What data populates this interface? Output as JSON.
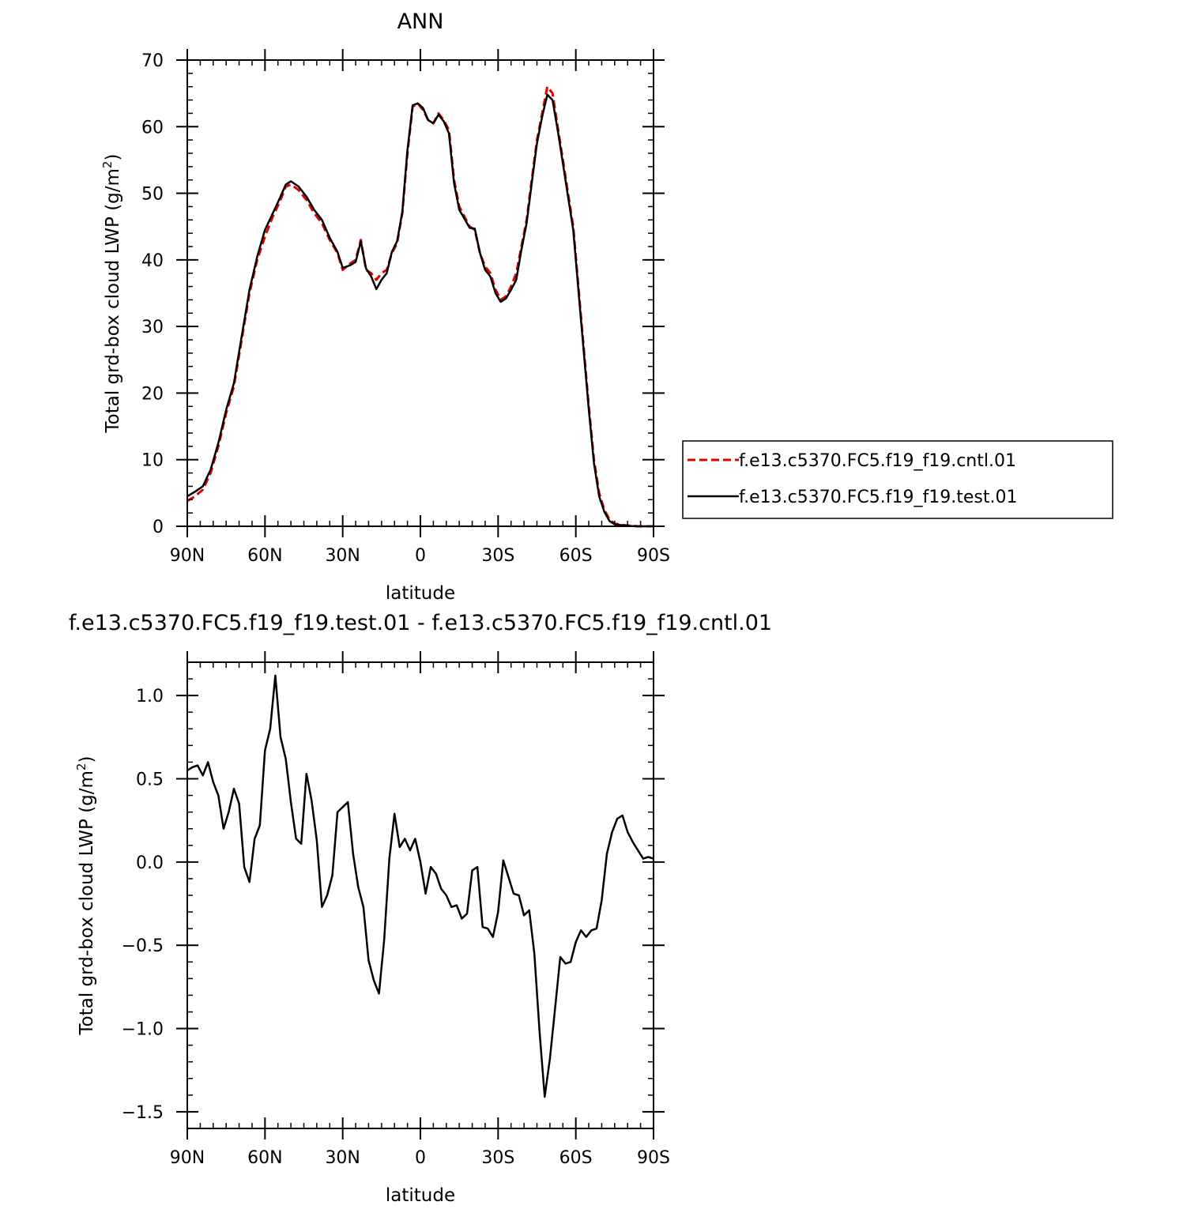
{
  "chart_data": [
    {
      "type": "line",
      "title": "ANN",
      "xlabel": "latitude",
      "ylabel": "Total grd-box cloud LWP (g/m",
      "ylabel_sup": "2",
      "ylabel_close": ")",
      "xlim": [
        90,
        -90
      ],
      "ylim": [
        0,
        70
      ],
      "x_ticks": [
        {
          "value": 90,
          "label": "90N"
        },
        {
          "value": 60,
          "label": "60N"
        },
        {
          "value": 30,
          "label": "30N"
        },
        {
          "value": 0,
          "label": "0"
        },
        {
          "value": -30,
          "label": "30S"
        },
        {
          "value": -60,
          "label": "60S"
        },
        {
          "value": -90,
          "label": "90S"
        }
      ],
      "y_ticks": [
        {
          "value": 0,
          "label": "0"
        },
        {
          "value": 10,
          "label": "10"
        },
        {
          "value": 20,
          "label": "20"
        },
        {
          "value": 30,
          "label": "30"
        },
        {
          "value": 40,
          "label": "40"
        },
        {
          "value": 50,
          "label": "50"
        },
        {
          "value": 60,
          "label": "60"
        },
        {
          "value": 70,
          "label": "70"
        }
      ],
      "grid": false,
      "legend_position": "right",
      "series": [
        {
          "name": "f.e13.c5370.FC5.f19_f19.cntl.01",
          "color": "#e00000",
          "dash": "dashed",
          "points": [
            [
              90,
              3.8
            ],
            [
              87,
              4.5
            ],
            [
              84,
              5.5
            ],
            [
              81,
              8
            ],
            [
              78,
              12
            ],
            [
              75,
              17
            ],
            [
              72,
              21
            ],
            [
              69,
              28
            ],
            [
              66,
              35
            ],
            [
              63,
              40
            ],
            [
              60,
              43.5
            ],
            [
              57,
              46.5
            ],
            [
              54,
              49
            ],
            [
              52,
              51
            ],
            [
              50,
              51.3
            ],
            [
              47,
              50.5
            ],
            [
              44,
              49
            ],
            [
              41,
              47
            ],
            [
              38,
              45.5
            ],
            [
              35,
              43
            ],
            [
              32,
              41
            ],
            [
              30,
              38.5
            ],
            [
              27,
              39.5
            ],
            [
              25,
              40
            ],
            [
              23,
              43
            ],
            [
              21,
              38.5
            ],
            [
              19,
              38
            ],
            [
              17,
              37
            ],
            [
              15,
              38
            ],
            [
              13,
              38.5
            ],
            [
              11,
              41
            ],
            [
              9,
              42.5
            ],
            [
              7,
              47
            ],
            [
              5,
              56
            ],
            [
              3,
              63
            ],
            [
              1,
              63.5
            ],
            [
              -1,
              62.5
            ],
            [
              -3,
              61
            ],
            [
              -5,
              60.5
            ],
            [
              -7,
              62
            ],
            [
              -9,
              61
            ],
            [
              -11,
              59.5
            ],
            [
              -13,
              52
            ],
            [
              -15,
              48
            ],
            [
              -17,
              46.5
            ],
            [
              -19,
              45
            ],
            [
              -21,
              44.5
            ],
            [
              -23,
              41
            ],
            [
              -25,
              39
            ],
            [
              -27,
              38
            ],
            [
              -29,
              35.5
            ],
            [
              -31,
              34
            ],
            [
              -33,
              34.5
            ],
            [
              -35,
              36
            ],
            [
              -37,
              38
            ],
            [
              -39,
              42
            ],
            [
              -41,
              46
            ],
            [
              -43,
              52
            ],
            [
              -45,
              58
            ],
            [
              -47,
              62
            ],
            [
              -49,
              66
            ],
            [
              -51,
              65
            ],
            [
              -53,
              60
            ],
            [
              -55,
              55
            ],
            [
              -57,
              50
            ],
            [
              -59,
              45
            ],
            [
              -61,
              36
            ],
            [
              -63,
              27
            ],
            [
              -65,
              18
            ],
            [
              -67,
              10
            ],
            [
              -69,
              5
            ],
            [
              -71,
              2.5
            ],
            [
              -73,
              1
            ],
            [
              -75,
              0.4
            ],
            [
              -78,
              0.2
            ],
            [
              -81,
              0.1
            ],
            [
              -84,
              0
            ],
            [
              -87,
              0
            ],
            [
              -90,
              0
            ]
          ]
        },
        {
          "name": "f.e13.c5370.FC5.f19_f19.test.01",
          "color": "#000000",
          "dash": "solid",
          "points": [
            [
              90,
              4.5
            ],
            [
              87,
              5.2
            ],
            [
              84,
              6
            ],
            [
              81,
              8.5
            ],
            [
              78,
              12.5
            ],
            [
              75,
              17.5
            ],
            [
              72,
              21.5
            ],
            [
              69,
              28.5
            ],
            [
              66,
              35.5
            ],
            [
              63,
              40.5
            ],
            [
              60,
              44.5
            ],
            [
              57,
              47
            ],
            [
              54,
              49.5
            ],
            [
              52,
              51.3
            ],
            [
              50,
              51.8
            ],
            [
              47,
              51
            ],
            [
              44,
              49.5
            ],
            [
              41,
              47.5
            ],
            [
              38,
              46
            ],
            [
              35,
              43.3
            ],
            [
              32,
              41.2
            ],
            [
              30,
              38.8
            ],
            [
              27,
              39.2
            ],
            [
              25,
              39.7
            ],
            [
              23,
              42.8
            ],
            [
              21,
              38.7
            ],
            [
              19,
              37.5
            ],
            [
              17,
              35.6
            ],
            [
              15,
              37
            ],
            [
              13,
              38
            ],
            [
              11,
              41.2
            ],
            [
              9,
              42.8
            ],
            [
              7,
              47.2
            ],
            [
              5,
              56.5
            ],
            [
              3,
              63.2
            ],
            [
              1,
              63.5
            ],
            [
              -1,
              62.8
            ],
            [
              -3,
              61
            ],
            [
              -5,
              60.5
            ],
            [
              -7,
              61.8
            ],
            [
              -9,
              60.8
            ],
            [
              -11,
              59
            ],
            [
              -13,
              51.5
            ],
            [
              -15,
              47.5
            ],
            [
              -17,
              46.2
            ],
            [
              -19,
              44.8
            ],
            [
              -21,
              44.7
            ],
            [
              -23,
              41
            ],
            [
              -25,
              38.5
            ],
            [
              -27,
              37.5
            ],
            [
              -29,
              35
            ],
            [
              -31,
              33.7
            ],
            [
              -33,
              34.2
            ],
            [
              -35,
              35.5
            ],
            [
              -37,
              37
            ],
            [
              -39,
              41.5
            ],
            [
              -41,
              45.5
            ],
            [
              -43,
              51.5
            ],
            [
              -45,
              57.5
            ],
            [
              -47,
              61.5
            ],
            [
              -49,
              64.8
            ],
            [
              -51,
              64
            ],
            [
              -53,
              59.5
            ],
            [
              -55,
              54.5
            ],
            [
              -57,
              49.5
            ],
            [
              -59,
              44.5
            ],
            [
              -61,
              35.5
            ],
            [
              -63,
              26.5
            ],
            [
              -65,
              17.5
            ],
            [
              -67,
              9.5
            ],
            [
              -69,
              4.5
            ],
            [
              -71,
              2.2
            ],
            [
              -73,
              0.8
            ],
            [
              -75,
              0.3
            ],
            [
              -78,
              0.15
            ],
            [
              -81,
              0.05
            ],
            [
              -84,
              0
            ],
            [
              -87,
              0
            ],
            [
              -90,
              0
            ]
          ]
        }
      ]
    },
    {
      "type": "line",
      "title": "f.e13.c5370.FC5.f19_f19.test.01 - f.e13.c5370.FC5.f19_f19.cntl.01",
      "xlabel": "latitude",
      "ylabel": "Total grd-box cloud LWP (g/m",
      "ylabel_sup": "2",
      "ylabel_close": ")",
      "xlim": [
        90,
        -90
      ],
      "ylim": [
        -1.6,
        1.2
      ],
      "x_ticks": [
        {
          "value": 90,
          "label": "90N"
        },
        {
          "value": 60,
          "label": "60N"
        },
        {
          "value": 30,
          "label": "30N"
        },
        {
          "value": 0,
          "label": "0"
        },
        {
          "value": -30,
          "label": "30S"
        },
        {
          "value": -60,
          "label": "60S"
        },
        {
          "value": -90,
          "label": "90S"
        }
      ],
      "y_ticks": [
        {
          "value": -1.5,
          "label": "-1.5"
        },
        {
          "value": -1.0,
          "label": "-1.0"
        },
        {
          "value": -0.5,
          "label": "-0.5"
        },
        {
          "value": 0.0,
          "label": "0.0"
        },
        {
          "value": 0.5,
          "label": "0.5"
        },
        {
          "value": 1.0,
          "label": "1.0"
        }
      ],
      "grid": false,
      "series": [
        {
          "color": "#000000",
          "dash": "solid",
          "points": [
            [
              90,
              0.55
            ],
            [
              88,
              0.57
            ],
            [
              86,
              0.58
            ],
            [
              84,
              0.52
            ],
            [
              82,
              0.6
            ],
            [
              80,
              0.48
            ],
            [
              78,
              0.4
            ],
            [
              76,
              0.2
            ],
            [
              74,
              0.3
            ],
            [
              72,
              0.44
            ],
            [
              70,
              0.35
            ],
            [
              68,
              -0.03
            ],
            [
              66,
              -0.12
            ],
            [
              64,
              0.14
            ],
            [
              62,
              0.22
            ],
            [
              60,
              0.67
            ],
            [
              58,
              0.8
            ],
            [
              56,
              1.12
            ],
            [
              54,
              0.75
            ],
            [
              52,
              0.62
            ],
            [
              50,
              0.36
            ],
            [
              48,
              0.14
            ],
            [
              46,
              0.11
            ],
            [
              44,
              0.53
            ],
            [
              42,
              0.37
            ],
            [
              40,
              0.13
            ],
            [
              38,
              -0.27
            ],
            [
              36,
              -0.2
            ],
            [
              34,
              -0.08
            ],
            [
              32,
              0.3
            ],
            [
              30,
              0.33
            ],
            [
              28,
              0.36
            ],
            [
              26,
              0.05
            ],
            [
              24,
              -0.15
            ],
            [
              22,
              -0.27
            ],
            [
              20,
              -0.59
            ],
            [
              18,
              -0.71
            ],
            [
              16,
              -0.79
            ],
            [
              14,
              -0.47
            ],
            [
              12,
              0.02
            ],
            [
              10,
              0.29
            ],
            [
              8,
              0.09
            ],
            [
              6,
              0.14
            ],
            [
              4,
              0.07
            ],
            [
              2,
              0.14
            ],
            [
              0,
              0.0
            ],
            [
              -2,
              -0.19
            ],
            [
              -4,
              -0.03
            ],
            [
              -6,
              -0.07
            ],
            [
              -8,
              -0.16
            ],
            [
              -10,
              -0.2
            ],
            [
              -12,
              -0.27
            ],
            [
              -14,
              -0.26
            ],
            [
              -16,
              -0.34
            ],
            [
              -18,
              -0.31
            ],
            [
              -20,
              -0.05
            ],
            [
              -22,
              -0.03
            ],
            [
              -24,
              -0.39
            ],
            [
              -26,
              -0.4
            ],
            [
              -28,
              -0.45
            ],
            [
              -30,
              -0.3
            ],
            [
              -32,
              0.01
            ],
            [
              -34,
              -0.09
            ],
            [
              -36,
              -0.19
            ],
            [
              -38,
              -0.2
            ],
            [
              -40,
              -0.32
            ],
            [
              -42,
              -0.29
            ],
            [
              -44,
              -0.55
            ],
            [
              -46,
              -1.02
            ],
            [
              -48,
              -1.41
            ],
            [
              -50,
              -1.18
            ],
            [
              -52,
              -0.88
            ],
            [
              -54,
              -0.57
            ],
            [
              -56,
              -0.61
            ],
            [
              -58,
              -0.6
            ],
            [
              -60,
              -0.48
            ],
            [
              -62,
              -0.41
            ],
            [
              -64,
              -0.45
            ],
            [
              -66,
              -0.41
            ],
            [
              -68,
              -0.4
            ],
            [
              -70,
              -0.23
            ],
            [
              -72,
              0.05
            ],
            [
              -74,
              0.18
            ],
            [
              -76,
              0.26
            ],
            [
              -78,
              0.28
            ],
            [
              -80,
              0.18
            ],
            [
              -82,
              0.12
            ],
            [
              -84,
              0.07
            ],
            [
              -86,
              0.02
            ],
            [
              -88,
              0.03
            ],
            [
              -90,
              0.02
            ]
          ]
        }
      ]
    }
  ]
}
